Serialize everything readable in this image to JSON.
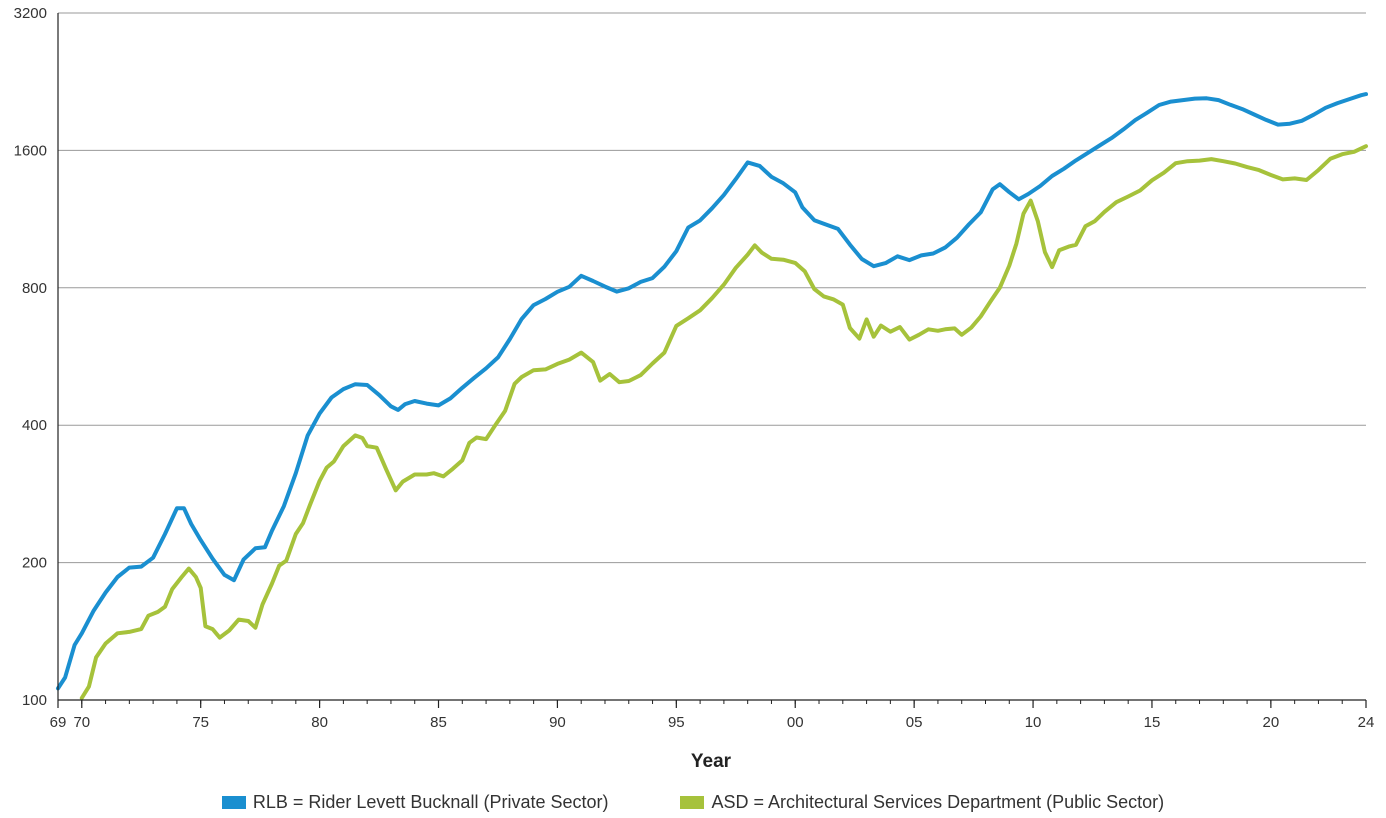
{
  "chart_data": {
    "type": "line",
    "title": "",
    "xlabel": "Year",
    "ylabel": "",
    "y_scale": "log",
    "ylim": [
      100,
      3200
    ],
    "yticks": [
      100,
      200,
      400,
      800,
      1600,
      3200
    ],
    "xlim": [
      1969,
      2024
    ],
    "xticks": [
      {
        "year": 1969,
        "label": "69"
      },
      {
        "year": 1970,
        "label": "70"
      },
      {
        "year": 1975,
        "label": "75"
      },
      {
        "year": 1980,
        "label": "80"
      },
      {
        "year": 1985,
        "label": "85"
      },
      {
        "year": 1990,
        "label": "90"
      },
      {
        "year": 1995,
        "label": "95"
      },
      {
        "year": 2000,
        "label": "00"
      },
      {
        "year": 2005,
        "label": "05"
      },
      {
        "year": 2010,
        "label": "10"
      },
      {
        "year": 2015,
        "label": "15"
      },
      {
        "year": 2020,
        "label": "20"
      },
      {
        "year": 2024,
        "label": "24"
      }
    ],
    "grid": "horizontal",
    "legend_position": "bottom",
    "series": [
      {
        "name": "RLB = Rider Levett Bucknall (Private Sector)",
        "color": "#1a8fd0",
        "points": [
          [
            1969.0,
            106
          ],
          [
            1969.3,
            112
          ],
          [
            1969.7,
            132
          ],
          [
            1970.0,
            140
          ],
          [
            1970.5,
            157
          ],
          [
            1971.0,
            172
          ],
          [
            1971.5,
            186
          ],
          [
            1972.0,
            195
          ],
          [
            1972.5,
            196
          ],
          [
            1973.0,
            205
          ],
          [
            1973.5,
            231
          ],
          [
            1974.0,
            263
          ],
          [
            1974.3,
            263
          ],
          [
            1974.6,
            243
          ],
          [
            1975.0,
            224
          ],
          [
            1975.5,
            204
          ],
          [
            1976.0,
            188
          ],
          [
            1976.4,
            183
          ],
          [
            1976.8,
            203
          ],
          [
            1977.3,
            215
          ],
          [
            1977.7,
            216
          ],
          [
            1978.0,
            235
          ],
          [
            1978.5,
            266
          ],
          [
            1979.0,
            314
          ],
          [
            1979.5,
            380
          ],
          [
            1980.0,
            424
          ],
          [
            1980.5,
            460
          ],
          [
            1981.0,
            480
          ],
          [
            1981.5,
            492
          ],
          [
            1982.0,
            490
          ],
          [
            1982.5,
            466
          ],
          [
            1983.0,
            440
          ],
          [
            1983.3,
            432
          ],
          [
            1983.6,
            445
          ],
          [
            1984.0,
            452
          ],
          [
            1984.5,
            446
          ],
          [
            1985.0,
            442
          ],
          [
            1985.5,
            458
          ],
          [
            1986.0,
            483
          ],
          [
            1986.5,
            508
          ],
          [
            1987.0,
            533
          ],
          [
            1987.5,
            563
          ],
          [
            1988.0,
            618
          ],
          [
            1988.5,
            684
          ],
          [
            1989.0,
            733
          ],
          [
            1989.5,
            756
          ],
          [
            1990.0,
            784
          ],
          [
            1990.5,
            804
          ],
          [
            1991.0,
            850
          ],
          [
            1991.5,
            828
          ],
          [
            1992.0,
            805
          ],
          [
            1992.5,
            785
          ],
          [
            1993.0,
            798
          ],
          [
            1993.5,
            824
          ],
          [
            1994.0,
            840
          ],
          [
            1994.5,
            890
          ],
          [
            1995.0,
            962
          ],
          [
            1995.5,
            1084
          ],
          [
            1996.0,
            1124
          ],
          [
            1996.5,
            1195
          ],
          [
            1997.0,
            1278
          ],
          [
            1997.5,
            1384
          ],
          [
            1998.0,
            1506
          ],
          [
            1998.5,
            1480
          ],
          [
            1999.0,
            1400
          ],
          [
            1999.5,
            1355
          ],
          [
            2000.0,
            1295
          ],
          [
            2000.3,
            1200
          ],
          [
            2000.8,
            1125
          ],
          [
            2001.2,
            1105
          ],
          [
            2001.8,
            1077
          ],
          [
            2002.3,
            995
          ],
          [
            2002.8,
            925
          ],
          [
            2003.3,
            892
          ],
          [
            2003.8,
            906
          ],
          [
            2004.3,
            938
          ],
          [
            2004.8,
            920
          ],
          [
            2005.3,
            942
          ],
          [
            2005.8,
            951
          ],
          [
            2006.3,
            980
          ],
          [
            2006.8,
            1030
          ],
          [
            2007.3,
            1101
          ],
          [
            2007.8,
            1170
          ],
          [
            2008.3,
            1314
          ],
          [
            2008.6,
            1349
          ],
          [
            2009.0,
            1296
          ],
          [
            2009.4,
            1250
          ],
          [
            2009.8,
            1284
          ],
          [
            2010.3,
            1337
          ],
          [
            2010.8,
            1406
          ],
          [
            2011.3,
            1459
          ],
          [
            2011.8,
            1521
          ],
          [
            2012.3,
            1580
          ],
          [
            2012.8,
            1640
          ],
          [
            2013.3,
            1702
          ],
          [
            2013.8,
            1779
          ],
          [
            2014.3,
            1864
          ],
          [
            2014.8,
            1935
          ],
          [
            2015.3,
            2012
          ],
          [
            2015.8,
            2047
          ],
          [
            2016.3,
            2062
          ],
          [
            2016.8,
            2078
          ],
          [
            2017.3,
            2081
          ],
          [
            2017.8,
            2062
          ],
          [
            2018.3,
            2014
          ],
          [
            2018.8,
            1971
          ],
          [
            2019.3,
            1918
          ],
          [
            2019.8,
            1866
          ],
          [
            2020.3,
            1822
          ],
          [
            2020.8,
            1831
          ],
          [
            2021.3,
            1858
          ],
          [
            2021.8,
            1916
          ],
          [
            2022.3,
            1984
          ],
          [
            2022.8,
            2031
          ],
          [
            2023.3,
            2073
          ],
          [
            2023.8,
            2114
          ],
          [
            2024.0,
            2126
          ]
        ]
      },
      {
        "name": "ASD = Architectural Services Department (Public Sector)",
        "color": "#a6c23b",
        "points": [
          [
            1970.0,
            101
          ],
          [
            1970.3,
            107
          ],
          [
            1970.6,
            124
          ],
          [
            1971.0,
            133
          ],
          [
            1971.5,
            140
          ],
          [
            1972.0,
            141
          ],
          [
            1972.5,
            143
          ],
          [
            1972.8,
            153
          ],
          [
            1973.2,
            156
          ],
          [
            1973.5,
            160
          ],
          [
            1973.8,
            175
          ],
          [
            1974.2,
            186
          ],
          [
            1974.5,
            194
          ],
          [
            1974.8,
            186
          ],
          [
            1975.0,
            176
          ],
          [
            1975.2,
            145
          ],
          [
            1975.5,
            143
          ],
          [
            1975.8,
            137
          ],
          [
            1976.2,
            142
          ],
          [
            1976.6,
            150
          ],
          [
            1977.0,
            149
          ],
          [
            1977.3,
            144
          ],
          [
            1977.6,
            162
          ],
          [
            1978.0,
            180
          ],
          [
            1978.3,
            197
          ],
          [
            1978.6,
            202
          ],
          [
            1979.0,
            231
          ],
          [
            1979.3,
            244
          ],
          [
            1979.6,
            268
          ],
          [
            1980.0,
            302
          ],
          [
            1980.3,
            323
          ],
          [
            1980.6,
            333
          ],
          [
            1981.0,
            360
          ],
          [
            1981.5,
            380
          ],
          [
            1981.8,
            375
          ],
          [
            1982.0,
            360
          ],
          [
            1982.4,
            357
          ],
          [
            1982.8,
            320
          ],
          [
            1983.2,
            288
          ],
          [
            1983.5,
            301
          ],
          [
            1984.0,
            312
          ],
          [
            1984.5,
            312
          ],
          [
            1984.8,
            314
          ],
          [
            1985.2,
            309
          ],
          [
            1985.6,
            321
          ],
          [
            1986.0,
            335
          ],
          [
            1986.3,
            366
          ],
          [
            1986.6,
            376
          ],
          [
            1987.0,
            373
          ],
          [
            1987.4,
            401
          ],
          [
            1987.8,
            430
          ],
          [
            1988.2,
            493
          ],
          [
            1988.5,
            510
          ],
          [
            1989.0,
            528
          ],
          [
            1989.5,
            530
          ],
          [
            1990.0,
            545
          ],
          [
            1990.5,
            557
          ],
          [
            1991.0,
            577
          ],
          [
            1991.5,
            550
          ],
          [
            1991.8,
            501
          ],
          [
            1992.2,
            518
          ],
          [
            1992.6,
            497
          ],
          [
            1993.0,
            500
          ],
          [
            1993.5,
            515
          ],
          [
            1994.0,
            546
          ],
          [
            1994.5,
            577
          ],
          [
            1995.0,
            660
          ],
          [
            1995.5,
            686
          ],
          [
            1996.0,
            714
          ],
          [
            1996.5,
            759
          ],
          [
            1997.0,
            813
          ],
          [
            1997.5,
            885
          ],
          [
            1998.0,
            946
          ],
          [
            1998.3,
            991
          ],
          [
            1998.6,
            955
          ],
          [
            1999.0,
            926
          ],
          [
            1999.5,
            922
          ],
          [
            2000.0,
            907
          ],
          [
            2000.4,
            870
          ],
          [
            2000.8,
            795
          ],
          [
            2001.2,
            766
          ],
          [
            2001.6,
            755
          ],
          [
            2002.0,
            735
          ],
          [
            2002.3,
            653
          ],
          [
            2002.7,
            619
          ],
          [
            2003.0,
            682
          ],
          [
            2003.3,
            625
          ],
          [
            2003.6,
            661
          ],
          [
            2004.0,
            641
          ],
          [
            2004.4,
            656
          ],
          [
            2004.8,
            616
          ],
          [
            2005.2,
            631
          ],
          [
            2005.6,
            649
          ],
          [
            2006.0,
            644
          ],
          [
            2006.3,
            649
          ],
          [
            2006.7,
            652
          ],
          [
            2007.0,
            631
          ],
          [
            2007.4,
            654
          ],
          [
            2007.8,
            692
          ],
          [
            2008.2,
            745
          ],
          [
            2008.6,
            800
          ],
          [
            2009.0,
            895
          ],
          [
            2009.3,
            1000
          ],
          [
            2009.6,
            1163
          ],
          [
            2009.9,
            1242
          ],
          [
            2010.2,
            1120
          ],
          [
            2010.5,
            958
          ],
          [
            2010.8,
            888
          ],
          [
            2011.1,
            967
          ],
          [
            2011.5,
            985
          ],
          [
            2011.8,
            994
          ],
          [
            2012.2,
            1091
          ],
          [
            2012.6,
            1120
          ],
          [
            2013.0,
            1173
          ],
          [
            2013.5,
            1232
          ],
          [
            2014.0,
            1268
          ],
          [
            2014.5,
            1307
          ],
          [
            2015.0,
            1376
          ],
          [
            2015.5,
            1430
          ],
          [
            2016.0,
            1500
          ],
          [
            2016.5,
            1515
          ],
          [
            2017.0,
            1520
          ],
          [
            2017.5,
            1531
          ],
          [
            2018.0,
            1515
          ],
          [
            2018.5,
            1498
          ],
          [
            2019.0,
            1471
          ],
          [
            2019.5,
            1449
          ],
          [
            2020.0,
            1413
          ],
          [
            2020.5,
            1382
          ],
          [
            2021.0,
            1389
          ],
          [
            2021.5,
            1378
          ],
          [
            2022.0,
            1449
          ],
          [
            2022.5,
            1534
          ],
          [
            2023.0,
            1570
          ],
          [
            2023.5,
            1589
          ],
          [
            2024.0,
            1634
          ]
        ]
      }
    ]
  }
}
